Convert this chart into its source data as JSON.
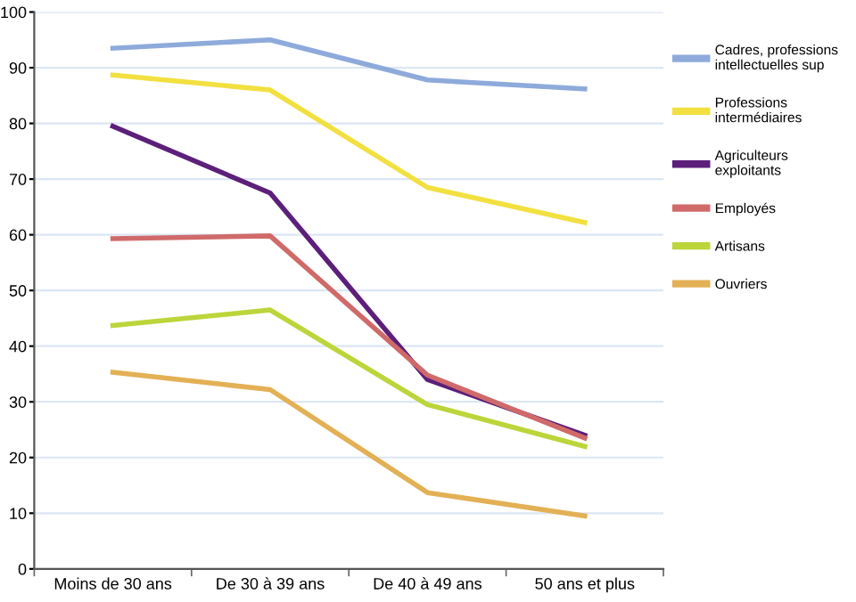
{
  "chart_data": {
    "type": "line",
    "categories": [
      "Moins de 30 ans",
      "De 30 à 39 ans",
      "De 40 à 49 ans",
      "50 ans et plus"
    ],
    "series": [
      {
        "name": "Cadres, professions intellectuelles sup",
        "color": "#8eaadb",
        "values": [
          93.5,
          95,
          87.8,
          86.2
        ]
      },
      {
        "name": "Professions intermédiaires",
        "color": "#f2e040",
        "values": [
          88.7,
          86,
          68.5,
          62.2
        ]
      },
      {
        "name": "Agriculteurs exploitants",
        "color": "#5c1f7a",
        "values": [
          79.5,
          67.5,
          34,
          24
        ]
      },
      {
        "name": "Employés",
        "color": "#d06a6a",
        "values": [
          59.3,
          59.8,
          34.8,
          23.5
        ]
      },
      {
        "name": "Artisans",
        "color": "#bcd53a",
        "values": [
          43.7,
          46.5,
          29.5,
          22
        ]
      },
      {
        "name": "Ouvriers",
        "color": "#e3b055",
        "values": [
          35.3,
          32.2,
          13.7,
          9.5
        ]
      }
    ],
    "ylim": [
      0,
      100
    ],
    "yticks": [
      0,
      10,
      20,
      30,
      40,
      50,
      60,
      70,
      80,
      90,
      100
    ],
    "grid": "y",
    "legend": "right",
    "marker": "none",
    "line_style": "solid"
  }
}
